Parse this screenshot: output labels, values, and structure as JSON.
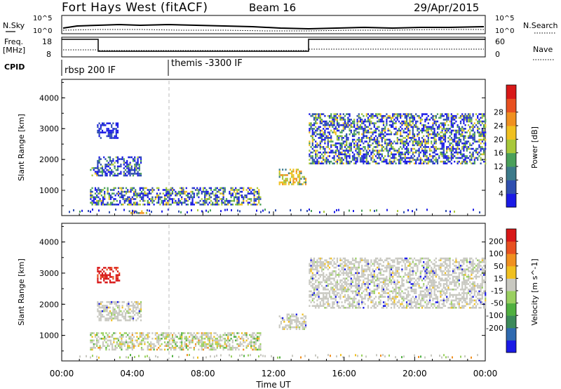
{
  "header": {
    "radar": "Fort Hays West (fitACF)",
    "beam": "Beam 16",
    "date": "29/Apr/2015"
  },
  "noise_panel": {
    "left_label": "N.Sky",
    "right_label": "N.Search",
    "left_ticks": [
      "10^5",
      "10^0"
    ],
    "right_ticks": [
      "10^5",
      "10^0"
    ]
  },
  "freq_panel": {
    "left_label_line1": "Freq.",
    "left_label_line2": "[MHz]",
    "right_label": "Nave",
    "left_ticks": [
      "18",
      "8"
    ],
    "right_ticks": [
      "60",
      "0"
    ]
  },
  "cpid": {
    "label": "CPID",
    "modes": [
      {
        "name": "rbsp 200 IF",
        "start_hour": 0
      },
      {
        "name": "themis -3300 IF",
        "start_hour": 6
      }
    ]
  },
  "chart_data": [
    {
      "type": "heatmap",
      "panel": "power",
      "ylabel": "Slant Range [km]",
      "xlabel": "",
      "ylim": [
        180,
        4600
      ],
      "xlim_hours": [
        0,
        24
      ],
      "yticks": [
        "1000",
        "2000",
        "3000",
        "4000"
      ],
      "colorbar": {
        "label": "Power [dB]",
        "ticks": [
          "4",
          "8",
          "12",
          "16",
          "20",
          "24",
          "28"
        ],
        "colors": [
          "#1a1ae6",
          "#2f4fb0",
          "#3c7a8a",
          "#4aa05a",
          "#a8c83a",
          "#f0c020",
          "#f09020",
          "#e85020",
          "#d81818"
        ]
      },
      "echo_regions": [
        {
          "hours": [
            1.6,
            2.1
          ],
          "range_km": [
            1500,
            1750
          ],
          "level": "mid"
        },
        {
          "hours": [
            2.0,
            4.5
          ],
          "range_km": [
            1500,
            2100
          ],
          "level": "low-mid"
        },
        {
          "hours": [
            2.0,
            3.2
          ],
          "range_km": [
            2700,
            3200
          ],
          "level": "low"
        },
        {
          "hours": [
            1.6,
            11.3
          ],
          "range_km": [
            550,
            1100
          ],
          "level": "mid"
        },
        {
          "hours": [
            3.8,
            4.8
          ],
          "range_km": [
            250,
            350
          ],
          "level": "high"
        },
        {
          "hours": [
            12.3,
            13.8
          ],
          "range_km": [
            1200,
            1700
          ],
          "level": "high"
        },
        {
          "hours": [
            14.0,
            24.0
          ],
          "range_km": [
            1900,
            3500
          ],
          "level": "mid"
        }
      ]
    },
    {
      "type": "heatmap",
      "panel": "velocity",
      "ylabel": "Slant Range [km]",
      "xlabel": "Time UT",
      "ylim": [
        180,
        4600
      ],
      "xlim_hours": [
        0,
        24
      ],
      "yticks": [
        "1000",
        "2000",
        "3000",
        "4000"
      ],
      "xticks": [
        "00:00",
        "04:00",
        "08:00",
        "12:00",
        "16:00",
        "20:00",
        "00:00"
      ],
      "colorbar": {
        "label": "Velocity [m s^-1]",
        "ticks": [
          "200",
          "100",
          "50",
          "15",
          "-15",
          "-50",
          "-100",
          "-200"
        ],
        "colors": [
          "#1a1ae6",
          "#2f6ab0",
          "#3c8a5a",
          "#50b040",
          "#9ad060",
          "#c8c8c0",
          "#f0c020",
          "#f09020",
          "#e85020",
          "#d81818"
        ]
      },
      "echo_regions": [
        {
          "hours": [
            2.0,
            3.3
          ],
          "range_km": [
            2700,
            3200
          ],
          "level": "red"
        },
        {
          "hours": [
            2.0,
            4.5
          ],
          "range_km": [
            1500,
            2100
          ],
          "level": "gray"
        },
        {
          "hours": [
            1.6,
            11.3
          ],
          "range_km": [
            550,
            1100
          ],
          "level": "gray-green"
        },
        {
          "hours": [
            12.3,
            13.8
          ],
          "range_km": [
            1200,
            1700
          ],
          "level": "gray"
        },
        {
          "hours": [
            14.0,
            24.0
          ],
          "range_km": [
            1900,
            3500
          ],
          "level": "gray"
        }
      ]
    }
  ]
}
